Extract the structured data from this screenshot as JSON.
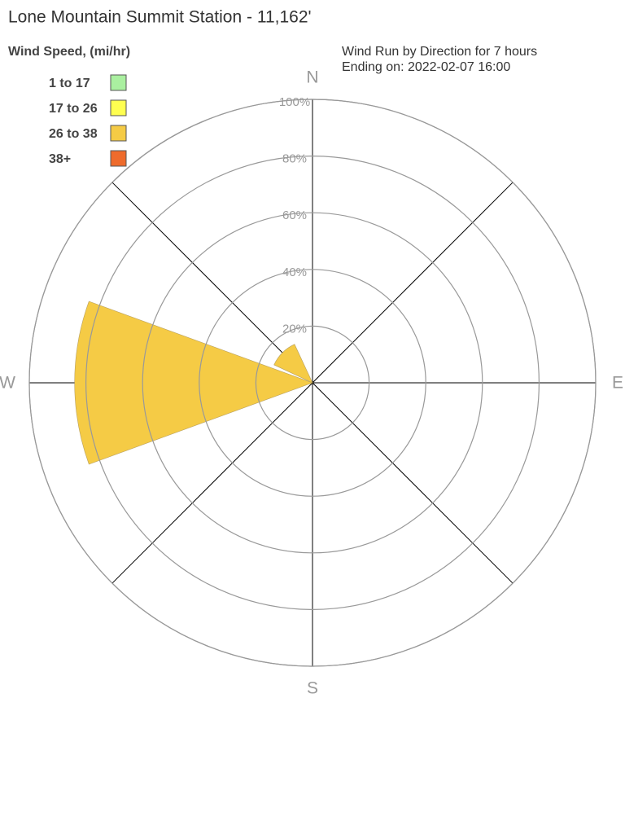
{
  "chart_data": {
    "type": "windrose",
    "title": "Lone Mountain Summit Station - 11,162'",
    "legend_title": "Wind Speed, (mi/hr)",
    "subtitle": [
      "Wind Run by Direction for 7 hours",
      "Ending on: 2022-02-07 16:00"
    ],
    "categories": [
      "N",
      null,
      "E",
      null,
      "S",
      null,
      "W",
      null
    ],
    "series": [
      {
        "name": "1 to 17",
        "color": "#aaf0a0",
        "values": [
          0,
          0,
          0,
          0,
          0,
          0,
          0,
          0
        ]
      },
      {
        "name": "17 to 26",
        "color": "#ffff50",
        "values": [
          0,
          0,
          0,
          0,
          0,
          0,
          0,
          0
        ]
      },
      {
        "name": "26 to 38",
        "color": "#f5cb45",
        "values": [
          0,
          0,
          0,
          0,
          0,
          0,
          84,
          15
        ]
      },
      {
        "name": "38+",
        "color": "#ee6b2c",
        "values": [
          0,
          0,
          0,
          0,
          0,
          0,
          0,
          0
        ]
      }
    ],
    "rlim": [
      0,
      100
    ],
    "rticks": [
      {
        "value": 20,
        "label": "20%"
      },
      {
        "value": 40,
        "label": "40%"
      },
      {
        "value": 60,
        "label": "60%"
      },
      {
        "value": 80,
        "label": "80%"
      },
      {
        "value": 100,
        "label": "100%"
      }
    ],
    "grid": true
  }
}
